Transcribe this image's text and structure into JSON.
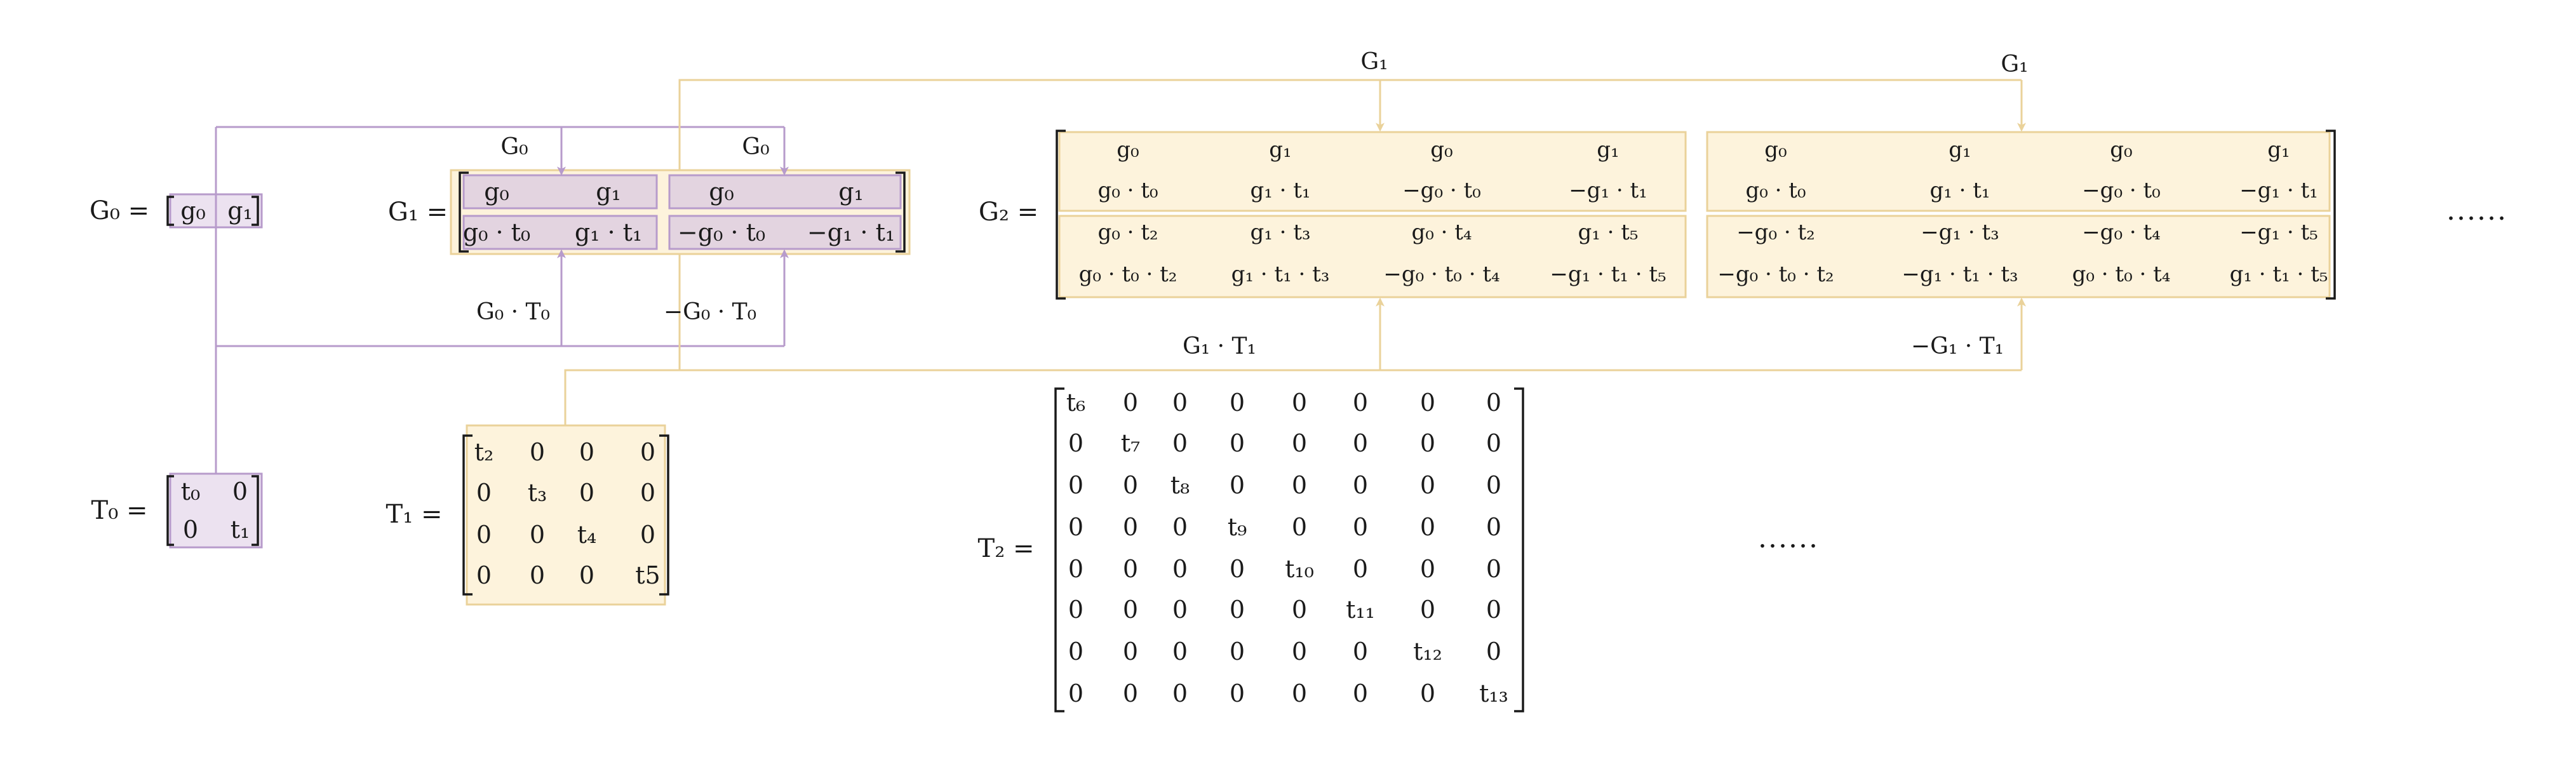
{
  "colors": {
    "purple_line": "#b79bcb",
    "purple_fill": "#ece2f0",
    "purple_fill_dark": "#e3d4e0",
    "yellow_line": "#ead29a",
    "yellow_fill": "#fdf3dc",
    "ink": "#1a1a1a"
  },
  "labels": {
    "G0": "G₀ =",
    "G1": "G₁ =",
    "G2": "G₂ =",
    "T0": "T₀ =",
    "T1": "T₁ =",
    "T2": "T₂ ="
  },
  "annotations": {
    "g0_top_left": "G₀",
    "g0_top_right": "G₀",
    "g0_t0": "G₀ · T₀",
    "neg_g0_t0": "−G₀ · T₀",
    "g1_top_left": "G₁",
    "g1_top_right": "G₁",
    "g1_t1": "G₁ · T₁",
    "neg_g1_t1": "−G₁ · T₁"
  },
  "matrices": {
    "G0": [
      [
        "g₀",
        "g₁"
      ]
    ],
    "T0": [
      [
        "t₀",
        "0"
      ],
      [
        "0",
        "t₁"
      ]
    ],
    "G1_left": [
      [
        "g₀",
        "g₁"
      ],
      [
        "g₀ · t₀",
        "g₁ · t₁"
      ]
    ],
    "G1_right": [
      [
        "g₀",
        "g₁"
      ],
      [
        "−g₀ · t₀",
        "−g₁ · t₁"
      ]
    ],
    "T1": [
      [
        "t₂",
        "0",
        "0",
        "0"
      ],
      [
        "0",
        "t₃",
        "0",
        "0"
      ],
      [
        "0",
        "0",
        "t₄",
        "0"
      ],
      [
        "0",
        "0",
        "0",
        "t5"
      ]
    ],
    "G2_left": [
      [
        "g₀",
        "g₁",
        "g₀",
        "g₁"
      ],
      [
        "g₀ · t₀",
        "g₁ · t₁",
        "−g₀ · t₀",
        "−g₁ · t₁"
      ],
      [
        "g₀ · t₂",
        "g₁ · t₃",
        "g₀ · t₄",
        "g₁ · t₅"
      ],
      [
        "g₀ · t₀ · t₂",
        "g₁ · t₁ · t₃",
        "−g₀ · t₀ · t₄",
        "−g₁ · t₁ · t₅"
      ]
    ],
    "G2_right": [
      [
        "g₀",
        "g₁",
        "g₀",
        "g₁"
      ],
      [
        "g₀ · t₀",
        "g₁ · t₁",
        "−g₀ · t₀",
        "−g₁ · t₁"
      ],
      [
        "−g₀ · t₂",
        "−g₁ · t₃",
        "−g₀ · t₄",
        "−g₁ · t₅"
      ],
      [
        "−g₀ · t₀ · t₂",
        "−g₁ · t₁ · t₃",
        "g₀ · t₀ · t₄",
        "g₁ · t₁ · t₅"
      ]
    ],
    "T2": [
      [
        "t₆",
        "0",
        "0",
        "0",
        "0",
        "0",
        "0",
        "0"
      ],
      [
        "0",
        "t₇",
        "0",
        "0",
        "0",
        "0",
        "0",
        "0"
      ],
      [
        "0",
        "0",
        "t₈",
        "0",
        "0",
        "0",
        "0",
        "0"
      ],
      [
        "0",
        "0",
        "0",
        "t₉",
        "0",
        "0",
        "0",
        "0"
      ],
      [
        "0",
        "0",
        "0",
        "0",
        "t₁₀",
        "0",
        "0",
        "0"
      ],
      [
        "0",
        "0",
        "0",
        "0",
        "0",
        "t₁₁",
        "0",
        "0"
      ],
      [
        "0",
        "0",
        "0",
        "0",
        "0",
        "0",
        "t₁₂",
        "0"
      ],
      [
        "0",
        "0",
        "0",
        "0",
        "0",
        "0",
        "0",
        "t₁₃"
      ]
    ]
  },
  "ellipsis": {
    "g_continuation": "......",
    "t_continuation": "......"
  }
}
